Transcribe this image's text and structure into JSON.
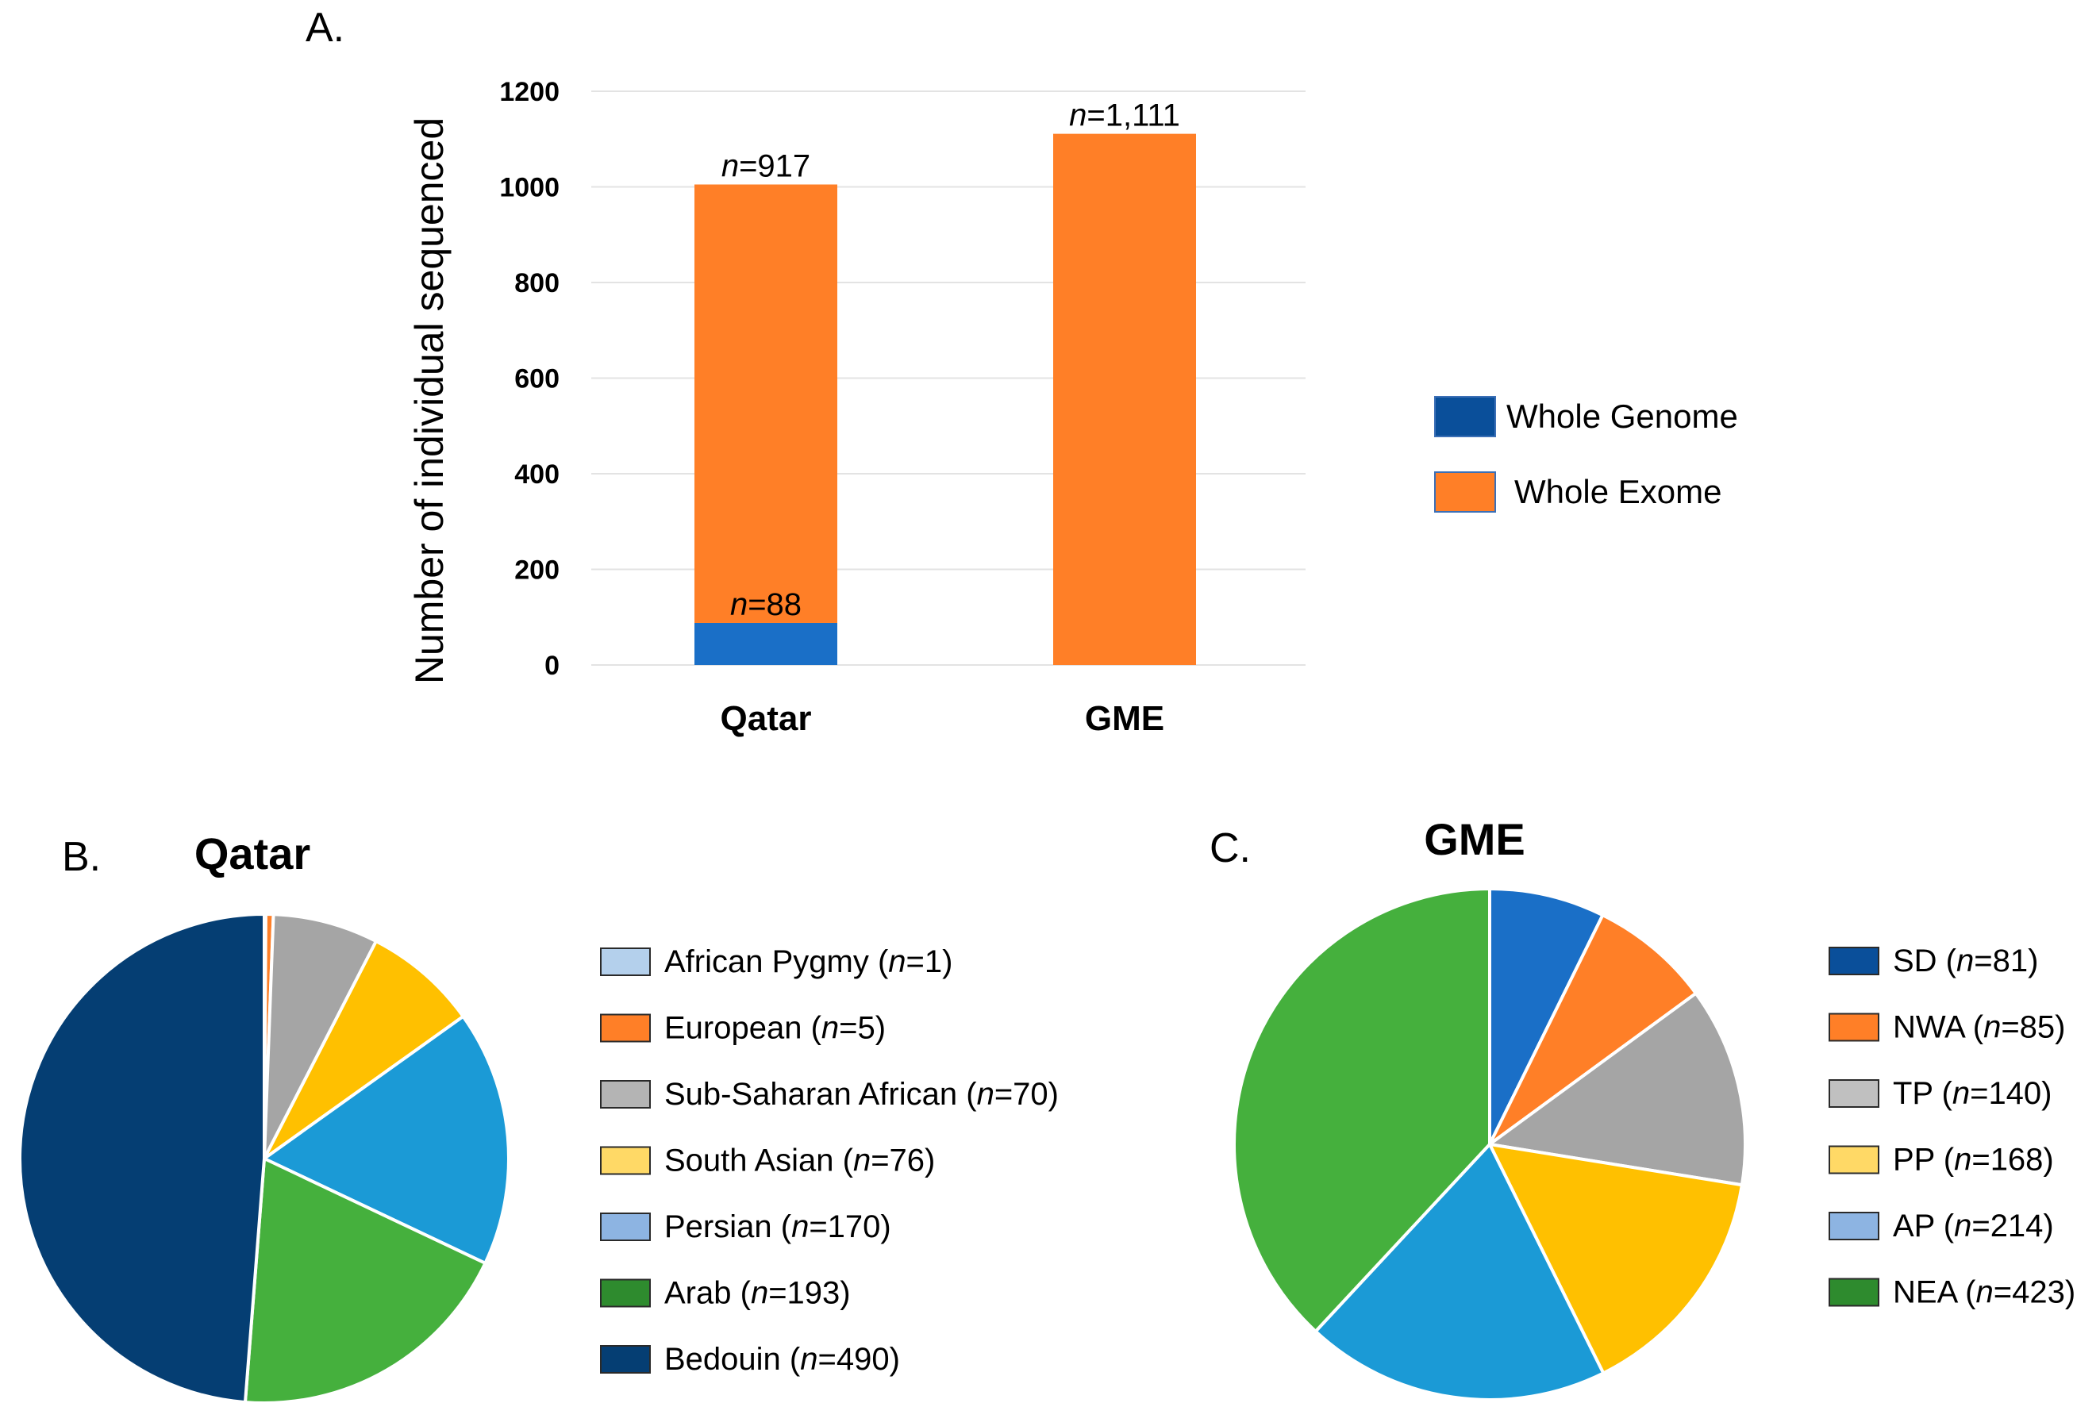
{
  "colors": {
    "whole_genome": "#1a6fc7",
    "whole_genome_legend": "#0a4f9a",
    "whole_exome": "#ff7f27",
    "gridline": "#e3e3e3"
  },
  "chart_data": [
    {
      "panel": "A.",
      "type": "bar",
      "stacked": true,
      "title": "",
      "xlabel": "",
      "ylabel": "Number of individual sequenced",
      "ylim": [
        0,
        1200
      ],
      "yticks": [
        0,
        200,
        400,
        600,
        800,
        1000,
        1200
      ],
      "grid": true,
      "legend_position": "right",
      "categories": [
        "Qatar",
        "GME"
      ],
      "series": [
        {
          "name": "Whole Genome",
          "values": [
            88,
            0
          ]
        },
        {
          "name": "Whole Exome",
          "values": [
            917,
            1111
          ]
        }
      ],
      "annotations": [
        {
          "category": "Qatar",
          "series": "Whole Genome",
          "italic": "n",
          "rest": "=88"
        },
        {
          "category": "Qatar",
          "series": "Whole Exome",
          "italic": "n",
          "rest": "=917"
        },
        {
          "category": "GME",
          "series": "Whole Exome",
          "italic": "n",
          "rest": "=1,111"
        }
      ]
    },
    {
      "panel": "B.",
      "type": "pie",
      "title": "Qatar",
      "legend_position": "right",
      "slices": [
        {
          "label": "African Pygmy",
          "n": 1,
          "count": "=1",
          "color": "#9dc3e6"
        },
        {
          "label": "European",
          "n": 5,
          "count": "=5",
          "color": "#ff7f27"
        },
        {
          "label": "Sub-Saharan African",
          "n": 70,
          "count": "=70",
          "color": "#a5a5a5"
        },
        {
          "label": "South Asian",
          "n": 76,
          "count": "=76",
          "color": "#ffc000"
        },
        {
          "label": "Persian",
          "n": 170,
          "count": "=170",
          "color": "#1b9ad6"
        },
        {
          "label": "Arab",
          "n": 193,
          "count": "=193",
          "color": "#45b03d"
        },
        {
          "label": "Bedouin",
          "n": 490,
          "count": "=490",
          "color": "#053e73"
        }
      ],
      "legend_colors": [
        "#b4d0ec",
        "#ff7f27",
        "#b4b4b4",
        "#ffd966",
        "#8db4e2",
        "#2e8b2e",
        "#053e73"
      ]
    },
    {
      "panel": "C.",
      "type": "pie",
      "title": "GME",
      "legend_position": "right",
      "slices": [
        {
          "label": "SD",
          "n": 81,
          "count": "=81",
          "color": "#1a6fc7"
        },
        {
          "label": "NWA",
          "n": 85,
          "count": "=85",
          "color": "#ff7f27"
        },
        {
          "label": "TP",
          "n": 140,
          "count": "=140",
          "color": "#a5a5a5"
        },
        {
          "label": "PP",
          "n": 168,
          "count": "=168",
          "color": "#ffc000"
        },
        {
          "label": "AP",
          "n": 214,
          "count": "=214",
          "color": "#1b9ad6"
        },
        {
          "label": "NEA",
          "n": 423,
          "count": "=423",
          "color": "#45b03d"
        }
      ],
      "legend_colors": [
        "#0a4f9a",
        "#ff7f27",
        "#c0c0c0",
        "#ffd966",
        "#8db4e2",
        "#2e8b2e"
      ]
    }
  ]
}
